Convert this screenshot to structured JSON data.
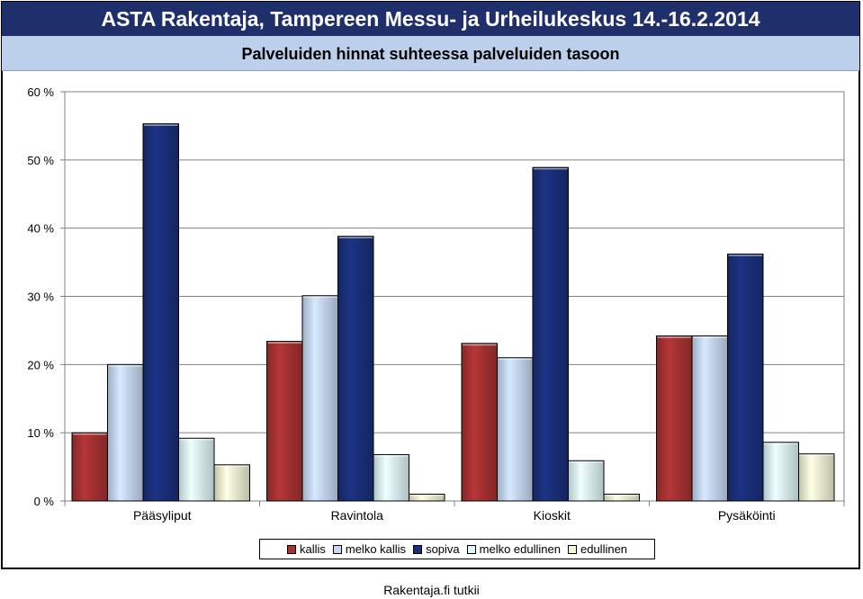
{
  "header": {
    "title": "ASTA Rakentaja, Tampereen Messu- ja Urheilukeskus 14.-16.2.2014",
    "subtitle": "Palveluiden hinnat suhteessa palveluiden tasoon"
  },
  "footer": {
    "text": "Rakentaja.fi tutkii"
  },
  "chart_data": {
    "type": "bar",
    "title": "Palveluiden hinnat suhteessa palveluiden tasoon",
    "xlabel": "",
    "ylabel": "",
    "ylim": [
      0,
      60
    ],
    "y_ticks": [
      0,
      10,
      20,
      30,
      40,
      50,
      60
    ],
    "y_tick_labels": [
      "0 %",
      "10 %",
      "20 %",
      "30 %",
      "40 %",
      "50 %",
      "60 %"
    ],
    "categories": [
      "Pääsyliput",
      "Ravintola",
      "Kioskit",
      "Pysäköinti"
    ],
    "series": [
      {
        "name": "kallis",
        "color": "#a83232",
        "values": [
          10.0,
          23.4,
          23.1,
          24.2
        ]
      },
      {
        "name": "melko kallis",
        "color": "#c6d8f2",
        "values": [
          20.0,
          30.1,
          21.0,
          24.2
        ]
      },
      {
        "name": "sopiva",
        "color": "#1a2f7a",
        "values": [
          55.3,
          38.8,
          48.9,
          36.2
        ]
      },
      {
        "name": "melko edullinen",
        "color": "#dcf6fa",
        "values": [
          9.2,
          6.8,
          5.9,
          8.6
        ]
      },
      {
        "name": "edullinen",
        "color": "#eef4d4",
        "values": [
          5.3,
          1.0,
          1.0,
          6.9
        ]
      }
    ],
    "grid": true,
    "legend_position": "bottom"
  }
}
